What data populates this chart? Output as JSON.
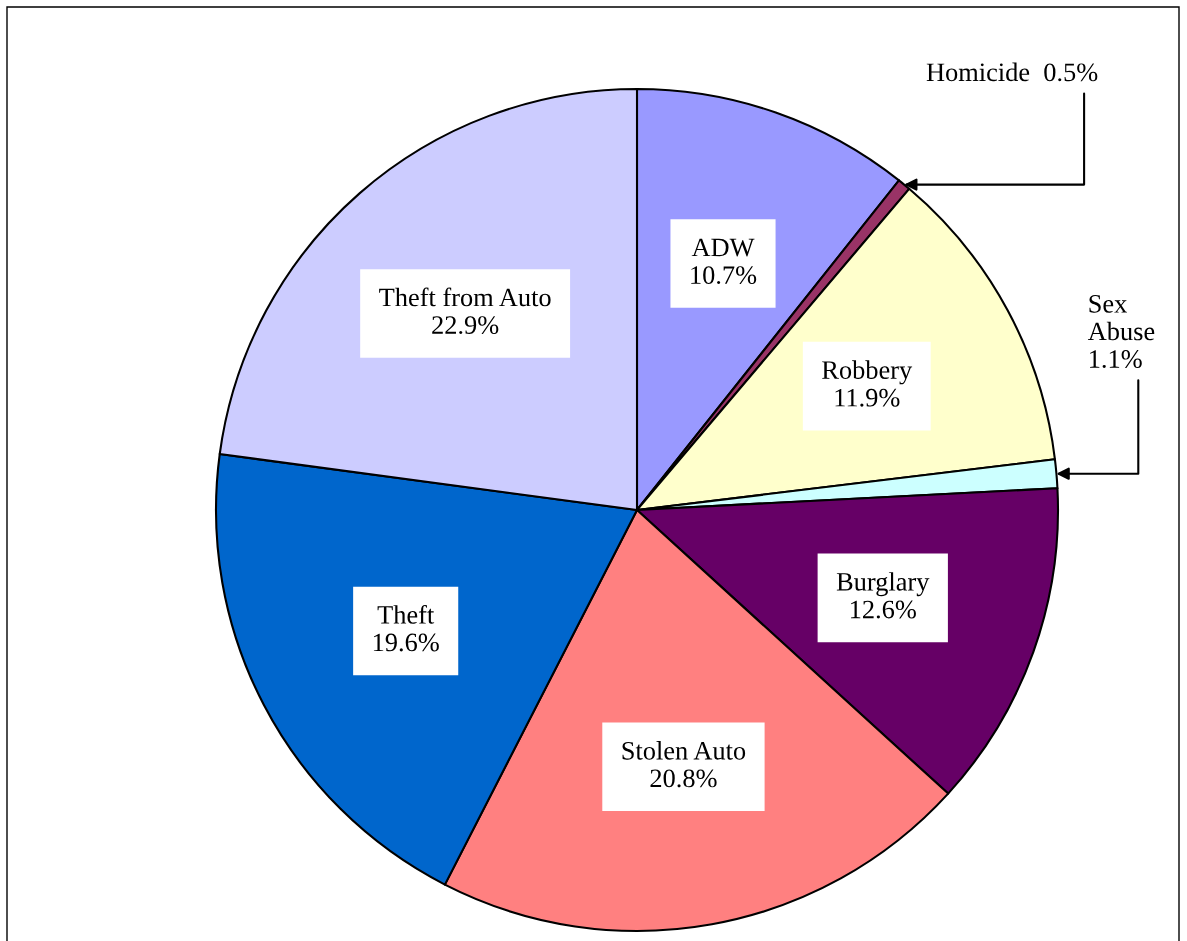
{
  "chart_data": {
    "type": "pie",
    "categories": [
      "ADW",
      "Homicide",
      "Robbery",
      "Sex Abuse",
      "Burglary",
      "Stolen Auto",
      "Theft",
      "Theft from Auto"
    ],
    "values": [
      10.7,
      0.5,
      11.9,
      1.1,
      12.6,
      20.8,
      19.6,
      22.9
    ],
    "colors": [
      "#9999ff",
      "#993366",
      "#ffffcc",
      "#ccffff",
      "#660066",
      "#ff8080",
      "#0066cc",
      "#ccccff"
    ],
    "value_labels": [
      "10.7%",
      "0.5%",
      "11.9%",
      "1.1%",
      "12.6%",
      "20.8%",
      "19.6%",
      "22.9%"
    ]
  }
}
